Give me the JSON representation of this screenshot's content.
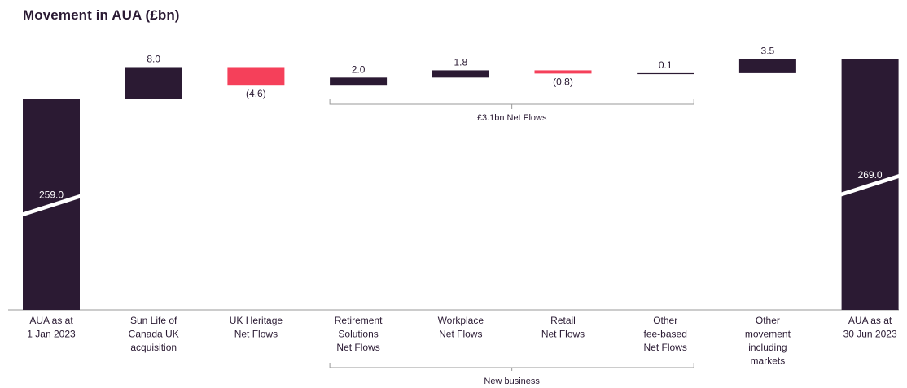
{
  "chart_data": {
    "type": "bar",
    "title": "Movement in AUA (£bn)",
    "categories": [
      [
        "AUA as at",
        "1 Jan 2023"
      ],
      [
        "Sun Life of",
        "Canada UK",
        "acquisition"
      ],
      [
        "UK Heritage",
        "Net Flows"
      ],
      [
        "Retirement",
        "Solutions",
        "Net Flows"
      ],
      [
        "Workplace",
        "Net Flows"
      ],
      [
        "Retail",
        "Net Flows"
      ],
      [
        "Other",
        "fee-based",
        "Net Flows"
      ],
      [
        "Other",
        "movement",
        "including",
        "markets"
      ],
      [
        "AUA as at",
        "30 Jun 2023"
      ]
    ],
    "values": [
      259.0,
      8.0,
      -4.6,
      2.0,
      1.8,
      -0.8,
      0.1,
      3.5,
      269.0
    ],
    "value_labels": [
      "259.0",
      "8.0",
      "(4.6)",
      "2.0",
      "1.8",
      "(0.8)",
      "0.1",
      "3.5",
      "269.0"
    ],
    "kinds": [
      "total",
      "delta",
      "delta",
      "delta",
      "delta",
      "delta",
      "delta",
      "delta",
      "total"
    ],
    "axis_break": true,
    "groups": [
      {
        "label": "£3.1bn Net Flows",
        "from": 3,
        "to": 6,
        "position": "above"
      },
      {
        "label": "New business",
        "from": 3,
        "to": 6,
        "position": "below"
      }
    ],
    "colors": {
      "positive": "#2b1a33",
      "negative": "#f5405a",
      "axis": "#999999",
      "bracket": "#999999"
    }
  }
}
